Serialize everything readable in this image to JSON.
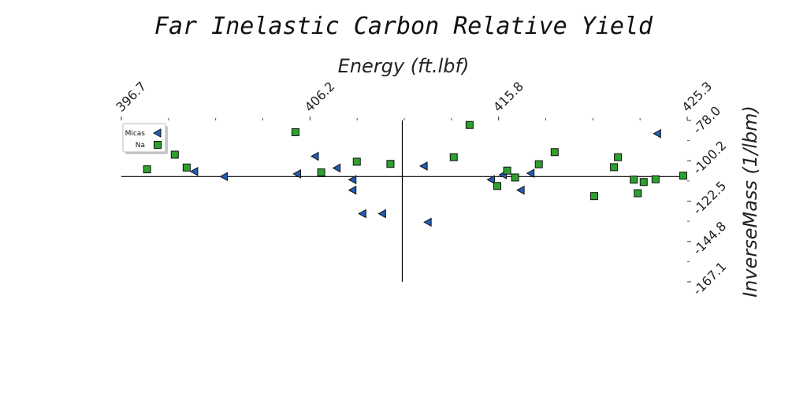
{
  "chart_data": {
    "type": "scatter",
    "title": "Far Inelastic Carbon Relative Yield",
    "xlabel": "Energy (ft.lbf)",
    "ylabel": "InverseMass (1/lbm)",
    "x_ticks": [
      "396.7",
      "406.2",
      "415.8",
      "425.3"
    ],
    "y_ticks": [
      "-78.0",
      "-100.2",
      "-122.5",
      "-144.8",
      "-167.1"
    ],
    "xlim": [
      396.7,
      425.3
    ],
    "ylim": [
      -167.1,
      -78.0
    ],
    "x_axis_position": "top",
    "y_axis_position": "right",
    "crosshair": {
      "x": 410.9,
      "y": -109.0
    },
    "grid": false,
    "legend_position": "top-left",
    "series": [
      {
        "name": "Micas",
        "marker": "triangle-left",
        "color": "#1f5fb8",
        "points": [
          [
            400.4,
            -106.2
          ],
          [
            401.9,
            -109.0
          ],
          [
            405.6,
            -107.5
          ],
          [
            406.5,
            -97.8
          ],
          [
            407.6,
            -104.3
          ],
          [
            408.4,
            -110.7
          ],
          [
            408.4,
            -116.5
          ],
          [
            408.9,
            -129.5
          ],
          [
            409.9,
            -129.5
          ],
          [
            412.0,
            -103.2
          ],
          [
            412.2,
            -134.2
          ],
          [
            415.4,
            -110.7
          ],
          [
            416.0,
            -108.0
          ],
          [
            416.9,
            -116.5
          ],
          [
            417.4,
            -107.2
          ],
          [
            423.8,
            -85.3
          ]
        ]
      },
      {
        "name": "Na",
        "marker": "square",
        "color": "#2ea02e",
        "points": [
          [
            398.0,
            -105.0
          ],
          [
            399.4,
            -96.9
          ],
          [
            400.0,
            -104.0
          ],
          [
            405.5,
            -84.5
          ],
          [
            406.8,
            -106.7
          ],
          [
            408.6,
            -100.8
          ],
          [
            410.3,
            -102.0
          ],
          [
            413.5,
            -98.3
          ],
          [
            414.3,
            -80.5
          ],
          [
            415.7,
            -114.2
          ],
          [
            416.2,
            -105.7
          ],
          [
            416.6,
            -109.5
          ],
          [
            417.8,
            -102.2
          ],
          [
            418.6,
            -95.5
          ],
          [
            421.6,
            -103.8
          ],
          [
            421.8,
            -98.3
          ],
          [
            420.6,
            -119.8
          ],
          [
            422.6,
            -110.7
          ],
          [
            422.8,
            -118.2
          ],
          [
            423.1,
            -112.0
          ],
          [
            423.7,
            -110.5
          ],
          [
            425.1,
            -108.5
          ]
        ]
      }
    ]
  }
}
